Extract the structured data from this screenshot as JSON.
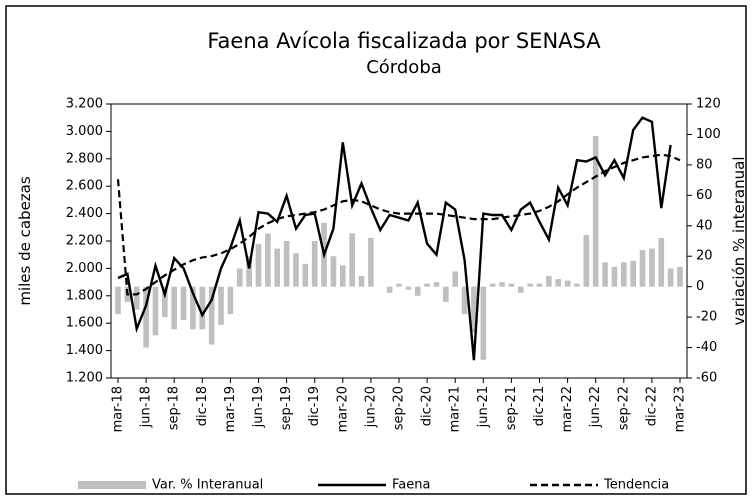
{
  "chart_data": {
    "type": "combo",
    "title": "Faena Avícola fiscalizada por SENASA",
    "subtitle": "Córdoba",
    "ylabel": "miles de cabezas",
    "y2label": "variación % interanual",
    "categories": [
      "mar-18",
      null,
      null,
      "jun-18",
      null,
      null,
      "sep-18",
      null,
      null,
      "dic-18",
      null,
      null,
      "mar-19",
      null,
      null,
      "jun-19",
      null,
      null,
      "sep-19",
      null,
      null,
      "dic-19",
      null,
      null,
      "mar-20",
      null,
      null,
      "jun-20",
      null,
      null,
      "sep-20",
      null,
      null,
      "dic-20",
      null,
      null,
      "mar-21",
      null,
      null,
      "jun-21",
      null,
      null,
      "sep-21",
      null,
      null,
      "dic-21",
      null,
      null,
      "mar-22",
      null,
      null,
      "jun-22",
      null,
      null,
      "sep-22",
      null,
      null,
      "dic-22",
      null,
      null,
      "mar-23"
    ],
    "ylim": [
      1200,
      3200
    ],
    "yticks": [
      {
        "value": 1200,
        "label": "1.200"
      },
      {
        "value": 1400,
        "label": "1.400"
      },
      {
        "value": 1600,
        "label": "1.600"
      },
      {
        "value": 1800,
        "label": "1.800"
      },
      {
        "value": 2000,
        "label": "2.000"
      },
      {
        "value": 2200,
        "label": "2.200"
      },
      {
        "value": 2400,
        "label": "2.400"
      },
      {
        "value": 2600,
        "label": "2.600"
      },
      {
        "value": 2800,
        "label": "2.800"
      },
      {
        "value": 3000,
        "label": "3.000"
      },
      {
        "value": 3200,
        "label": "3.200"
      }
    ],
    "y2lim": [
      -60,
      120
    ],
    "y2ticks": [
      -60,
      -40,
      -20,
      0,
      20,
      40,
      60,
      80,
      100,
      120
    ],
    "series": [
      {
        "name": "Var. % Interanual",
        "type": "bar",
        "axis": "y2",
        "color": "#bfbfbf",
        "values": [
          -18,
          -10,
          -15,
          -40,
          -32,
          -20,
          -28,
          -22,
          -28,
          -28,
          -38,
          -25,
          -18,
          12,
          20,
          28,
          35,
          25,
          30,
          22,
          15,
          30,
          42,
          20,
          14,
          35,
          7,
          32,
          0,
          -4,
          2,
          -2,
          -6,
          2,
          3,
          -10,
          10,
          -18,
          -30,
          -48,
          2,
          3,
          2,
          -4,
          2,
          2,
          7,
          5,
          4,
          2,
          34,
          99,
          16,
          13,
          16,
          17,
          24,
          25,
          32,
          12,
          13
        ]
      },
      {
        "name": "Faena",
        "type": "line",
        "color": "#000000",
        "dashed": false,
        "values": [
          1930,
          1960,
          1560,
          1730,
          2020,
          1810,
          2075,
          2000,
          1820,
          1660,
          1770,
          2000,
          2150,
          2350,
          2000,
          2410,
          2400,
          2340,
          2530,
          2290,
          2390,
          2400,
          2100,
          2290,
          2920,
          2460,
          2620,
          2440,
          2280,
          2390,
          2370,
          2350,
          2480,
          2180,
          2100,
          2480,
          2430,
          2060,
          1330,
          2400,
          2390,
          2390,
          2280,
          2430,
          2480,
          2340,
          2210,
          2590,
          2460,
          2790,
          2780,
          2810,
          2680,
          2790,
          2660,
          3010,
          3100,
          3070,
          2440,
          2900,
          null
        ]
      },
      {
        "name": "Tendencia",
        "type": "line",
        "color": "#000000",
        "dashed": true,
        "values": [
          2650,
          1810,
          1810,
          1850,
          1900,
          1950,
          1990,
          2030,
          2060,
          2080,
          2090,
          2110,
          2140,
          2180,
          2230,
          2290,
          2330,
          2360,
          2380,
          2390,
          2400,
          2410,
          2430,
          2460,
          2490,
          2500,
          2490,
          2460,
          2430,
          2410,
          2400,
          2400,
          2400,
          2400,
          2400,
          2390,
          2380,
          2370,
          2360,
          2360,
          2360,
          2370,
          2380,
          2390,
          2400,
          2420,
          2450,
          2490,
          2540,
          2590,
          2630,
          2670,
          2710,
          2740,
          2770,
          2790,
          2810,
          2820,
          2830,
          2820,
          2790
        ]
      }
    ]
  }
}
